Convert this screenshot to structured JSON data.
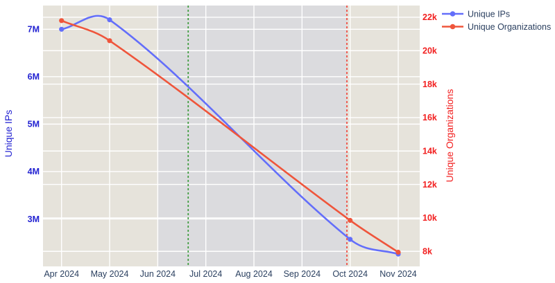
{
  "chart_data": {
    "type": "line",
    "x_dates": [
      "2024-04-01",
      "2024-05-01",
      "2024-10-01",
      "2024-11-01"
    ],
    "x_tick_labels": [
      "Apr 2024",
      "May 2024",
      "Jun 2024",
      "Jul 2024",
      "Aug 2024",
      "Sep 2024",
      "Oct 2024",
      "Nov 2024"
    ],
    "series": [
      {
        "name": "Unique IPs",
        "color": "#636EFA",
        "axis": "left",
        "values": [
          7000000,
          7200000,
          2570000,
          2260000
        ]
      },
      {
        "name": "Unique Organizations",
        "color": "#EF553B",
        "axis": "right",
        "values": [
          21800,
          20600,
          9850,
          7950
        ]
      }
    ],
    "left_axis": {
      "title": "Unique IPs",
      "color": "#2323d2",
      "range": [
        2000000,
        7500000
      ],
      "tick_values": [
        3000000,
        4000000,
        5000000,
        6000000,
        7000000
      ],
      "tick_labels": [
        "3M",
        "4M",
        "5M",
        "6M",
        "7M"
      ]
    },
    "right_axis": {
      "title": "Unique Organizations",
      "color": "#f22020",
      "range": [
        7100,
        22700
      ],
      "tick_values": [
        8000,
        10000,
        12000,
        14000,
        16000,
        18000,
        20000,
        22000
      ],
      "tick_labels": [
        "8k",
        "10k",
        "12k",
        "14k",
        "16k",
        "18k",
        "20k",
        "22k"
      ]
    },
    "vlines": [
      {
        "date": "2024-06-20",
        "color": "#3a9a3a",
        "style": "dash"
      },
      {
        "date": "2024-09-29",
        "color": "#f0453a",
        "style": "dash"
      }
    ],
    "shaded_band": {
      "from": "2024-06-01",
      "to": "2024-09-29",
      "color": "#dbdbde"
    },
    "legend": {
      "position": "top-right",
      "entries": [
        "Unique IPs",
        "Unique Organizations"
      ]
    },
    "plot_bgcolor": "#e6e3db",
    "grid_color": "#ffffff",
    "font_color": "#2a3f5f"
  }
}
